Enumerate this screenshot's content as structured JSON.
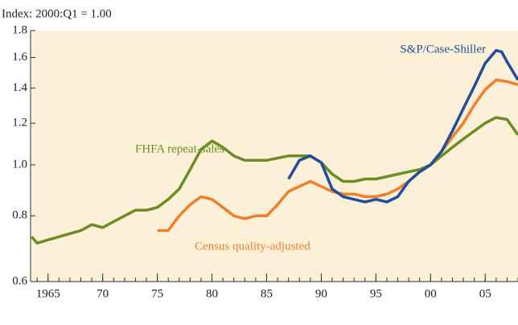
{
  "chart_data": {
    "type": "line",
    "y_axis_label": "Index: 2000:Q1 = 1.00",
    "xlim": [
      1963.4,
      2008
    ],
    "xticks": [
      1965,
      {
        "value": 1970,
        "label": "70"
      },
      {
        "value": 1975,
        "label": "75"
      },
      {
        "value": 1980,
        "label": "80"
      },
      {
        "value": 1985,
        "label": "85"
      },
      {
        "value": 1990,
        "label": "90"
      },
      {
        "value": 1995,
        "label": "95"
      },
      {
        "value": 2000,
        "label": "00"
      },
      {
        "value": 2005,
        "label": "05"
      }
    ],
    "ylim": [
      0.6,
      1.8
    ],
    "yticks": [
      0.6,
      0.8,
      {
        "value": 1.0,
        "label": "1.0"
      },
      1.2,
      1.4,
      1.6,
      1.8
    ],
    "log_scale": true,
    "grid": false,
    "series": [
      {
        "name": "FHFA repeat-sales",
        "color": "#6b8e23",
        "x": [
          1963.5,
          1964,
          1965,
          1966,
          1967,
          1968,
          1969,
          1970,
          1971,
          1972,
          1973,
          1974,
          1975,
          1976,
          1977,
          1978,
          1979,
          1980,
          1981,
          1982,
          1983,
          1984,
          1985,
          1986,
          1987,
          1988,
          1989,
          1990,
          1991,
          1992,
          1993,
          1994,
          1995,
          1996,
          1997,
          1998,
          1999,
          2000,
          2001,
          2002,
          2003,
          2004,
          2005,
          2006,
          2007,
          2008
        ],
        "values": [
          0.73,
          0.71,
          0.72,
          0.73,
          0.74,
          0.75,
          0.77,
          0.76,
          0.78,
          0.8,
          0.82,
          0.82,
          0.83,
          0.86,
          0.9,
          0.98,
          1.07,
          1.11,
          1.08,
          1.04,
          1.02,
          1.02,
          1.02,
          1.03,
          1.04,
          1.04,
          1.04,
          1.01,
          0.96,
          0.93,
          0.93,
          0.94,
          0.94,
          0.95,
          0.96,
          0.97,
          0.98,
          1.0,
          1.04,
          1.08,
          1.12,
          1.16,
          1.2,
          1.23,
          1.22,
          1.14
        ]
      },
      {
        "name": "Census quality-adjusted",
        "color": "#f07f2a",
        "x": [
          1975,
          1976,
          1977,
          1978,
          1979,
          1980,
          1981,
          1982,
          1983,
          1984,
          1985,
          1986,
          1987,
          1988,
          1989,
          1990,
          1991,
          1992,
          1993,
          1994,
          1995,
          1996,
          1997,
          1998,
          1999,
          2000,
          2001,
          2002,
          2003,
          2004,
          2005,
          2006,
          2007,
          2008
        ],
        "values": [
          0.75,
          0.75,
          0.8,
          0.84,
          0.87,
          0.86,
          0.83,
          0.8,
          0.79,
          0.8,
          0.8,
          0.84,
          0.89,
          0.91,
          0.93,
          0.91,
          0.89,
          0.88,
          0.88,
          0.87,
          0.87,
          0.88,
          0.9,
          0.93,
          0.97,
          1.0,
          1.06,
          1.13,
          1.2,
          1.3,
          1.39,
          1.45,
          1.44,
          1.42
        ]
      },
      {
        "name": "S&P/Case-Shiller",
        "color": "#1f4e9c",
        "x": [
          1987,
          1988,
          1989,
          1990,
          1991,
          1992,
          1993,
          1994,
          1995,
          1996,
          1997,
          1998,
          1999,
          2000,
          2001,
          2002,
          2003,
          2004,
          2005,
          2006,
          2006.5,
          2007,
          2008
        ],
        "values": [
          0.94,
          1.02,
          1.04,
          1.01,
          0.9,
          0.87,
          0.86,
          0.85,
          0.86,
          0.85,
          0.87,
          0.93,
          0.97,
          1.0,
          1.06,
          1.16,
          1.28,
          1.41,
          1.56,
          1.65,
          1.64,
          1.57,
          1.45
        ]
      }
    ]
  }
}
